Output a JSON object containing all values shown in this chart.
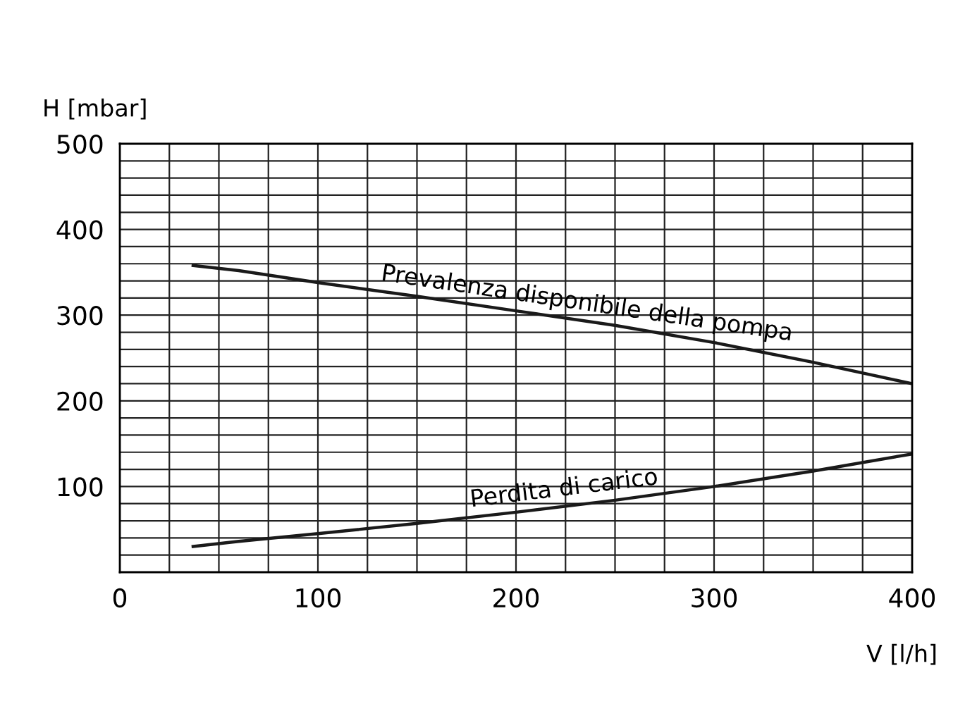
{
  "chart_data": {
    "type": "line",
    "xlabel": "V [l/h]",
    "ylabel": "H [mbar]",
    "series": [
      {
        "x": [
          37,
          60,
          100,
          150,
          200,
          250,
          300,
          350,
          400
        ],
        "values": [
          358,
          352,
          338,
          322,
          305,
          288,
          268,
          245,
          220
        ],
        "color": "#1a1a1a"
      },
      {
        "x": [
          37,
          60,
          100,
          150,
          200,
          250,
          300,
          350,
          400
        ],
        "values": [
          30,
          36,
          45,
          57,
          70,
          84,
          100,
          118,
          138
        ],
        "color": "#1a1a1a"
      }
    ],
    "annotations": [
      {
        "text": "Prevalenza disponibile della pompa",
        "x": 235,
        "y": 293
      },
      {
        "text": "Perdita di carico",
        "x": 225,
        "y": 77
      }
    ],
    "xlim": [
      0,
      400
    ],
    "ylim": [
      0,
      500
    ],
    "xticks": [
      0,
      {
        "value": 25,
        "label": null
      },
      {
        "value": 50,
        "label": null
      },
      {
        "value": 75,
        "label": null
      },
      100,
      {
        "value": 125,
        "label": null
      },
      {
        "value": 150,
        "label": null
      },
      {
        "value": 175,
        "label": null
      },
      200,
      {
        "value": 225,
        "label": null
      },
      {
        "value": 250,
        "label": null
      },
      {
        "value": 275,
        "label": null
      },
      300,
      {
        "value": 325,
        "label": null
      },
      {
        "value": 350,
        "label": null
      },
      {
        "value": 375,
        "label": null
      },
      400
    ],
    "yticks": [
      {
        "value": 20,
        "label": null
      },
      {
        "value": 40,
        "label": null
      },
      {
        "value": 60,
        "label": null
      },
      {
        "value": 80,
        "label": null
      },
      100,
      {
        "value": 120,
        "label": null
      },
      {
        "value": 140,
        "label": null
      },
      {
        "value": 160,
        "label": null
      },
      {
        "value": 180,
        "label": null
      },
      200,
      {
        "value": 220,
        "label": null
      },
      {
        "value": 240,
        "label": null
      },
      {
        "value": 260,
        "label": null
      },
      {
        "value": 280,
        "label": null
      },
      300,
      {
        "value": 320,
        "label": null
      },
      {
        "value": 340,
        "label": null
      },
      {
        "value": 360,
        "label": null
      },
      {
        "value": 380,
        "label": null
      },
      400,
      {
        "value": 420,
        "label": null
      },
      {
        "value": 440,
        "label": null
      },
      {
        "value": 460,
        "label": null
      },
      {
        "value": 480,
        "label": null
      },
      500
    ],
    "grid": true,
    "marker": "none",
    "line_style": "solid"
  }
}
